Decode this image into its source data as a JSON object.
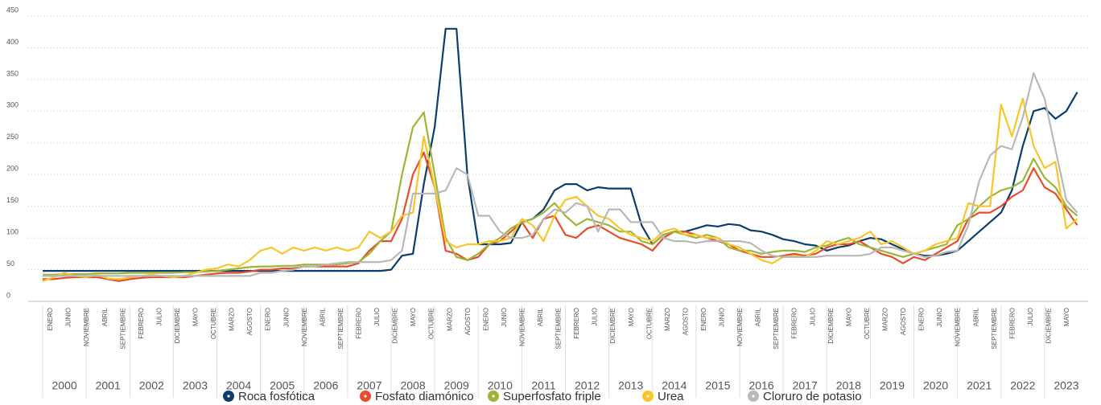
{
  "chart_data": {
    "type": "line",
    "series": [
      {
        "name": "Roca fosfótica",
        "color": "#0d3d6e",
        "values": [
          48,
          48,
          48,
          48,
          48,
          48,
          48,
          48,
          48,
          48,
          48,
          48,
          48,
          48,
          48,
          48,
          48,
          48,
          48,
          48,
          48,
          48,
          48,
          48,
          48,
          48,
          48,
          48,
          48,
          48,
          48,
          48,
          50,
          72,
          75,
          185,
          275,
          430,
          430,
          200,
          90,
          90,
          90,
          92,
          125,
          130,
          145,
          175,
          185,
          185,
          175,
          180,
          178,
          178,
          178,
          120,
          90,
          105,
          110,
          110,
          115,
          120,
          118,
          122,
          120,
          112,
          110,
          105,
          98,
          95,
          90,
          88,
          80,
          85,
          88,
          95,
          100,
          98,
          90,
          82,
          75,
          72,
          72,
          75,
          80,
          95,
          110,
          125,
          140,
          175,
          245,
          300,
          305,
          288,
          300,
          330
        ]
      },
      {
        "name": "Fosfato diamónico",
        "color": "#e84c2b",
        "values": [
          35,
          35,
          37,
          38,
          38,
          38,
          35,
          32,
          35,
          37,
          38,
          38,
          38,
          38,
          40,
          42,
          44,
          45,
          45,
          47,
          50,
          50,
          52,
          52,
          55,
          55,
          55,
          55,
          55,
          60,
          80,
          95,
          95,
          130,
          200,
          235,
          180,
          80,
          75,
          65,
          70,
          90,
          95,
          110,
          125,
          100,
          130,
          135,
          105,
          100,
          115,
          120,
          110,
          100,
          95,
          90,
          80,
          100,
          110,
          110,
          105,
          100,
          95,
          90,
          80,
          75,
          70,
          70,
          72,
          75,
          72,
          75,
          85,
          90,
          90,
          95,
          85,
          75,
          70,
          60,
          70,
          65,
          75,
          85,
          95,
          130,
          140,
          140,
          150,
          165,
          175,
          210,
          180,
          170,
          145,
          120
        ]
      },
      {
        "name": "Superfosfato friple",
        "color": "#9bb636",
        "values": [
          42,
          42,
          43,
          43,
          43,
          44,
          44,
          44,
          45,
          45,
          45,
          45,
          45,
          46,
          46,
          47,
          48,
          50,
          52,
          54,
          55,
          55,
          56,
          56,
          58,
          58,
          58,
          58,
          60,
          62,
          75,
          95,
          110,
          200,
          275,
          298,
          200,
          100,
          70,
          65,
          75,
          90,
          100,
          115,
          125,
          130,
          140,
          155,
          135,
          120,
          130,
          125,
          120,
          110,
          110,
          95,
          90,
          105,
          110,
          105,
          100,
          105,
          100,
          85,
          80,
          80,
          75,
          78,
          80,
          80,
          78,
          85,
          88,
          95,
          100,
          90,
          85,
          80,
          75,
          70,
          75,
          80,
          85,
          90,
          120,
          130,
          150,
          165,
          175,
          180,
          190,
          225,
          195,
          180,
          150,
          135
        ]
      },
      {
        "name": "Urea",
        "color": "#f9c52b",
        "values": [
          32,
          38,
          45,
          40,
          38,
          42,
          36,
          35,
          38,
          40,
          42,
          40,
          38,
          40,
          45,
          50,
          52,
          58,
          55,
          65,
          80,
          85,
          75,
          85,
          80,
          85,
          80,
          85,
          80,
          85,
          110,
          100,
          110,
          135,
          140,
          260,
          180,
          95,
          85,
          90,
          90,
          95,
          95,
          100,
          130,
          120,
          95,
          135,
          160,
          165,
          150,
          135,
          130,
          115,
          105,
          100,
          95,
          110,
          115,
          105,
          105,
          100,
          100,
          90,
          85,
          75,
          65,
          60,
          70,
          72,
          70,
          80,
          95,
          90,
          95,
          100,
          110,
          90,
          95,
          85,
          75,
          80,
          90,
          95,
          100,
          155,
          150,
          150,
          310,
          260,
          320,
          245,
          210,
          220,
          115,
          130
        ]
      },
      {
        "name": "Cloruro de potasio",
        "color": "#b8b8b8",
        "values": [
          40,
          40,
          40,
          40,
          40,
          40,
          40,
          40,
          40,
          40,
          40,
          40,
          40,
          40,
          40,
          40,
          40,
          40,
          40,
          40,
          45,
          45,
          48,
          50,
          55,
          55,
          58,
          60,
          62,
          62,
          62,
          62,
          65,
          80,
          170,
          170,
          170,
          175,
          210,
          200,
          135,
          135,
          110,
          100,
          100,
          105,
          130,
          145,
          140,
          155,
          150,
          110,
          145,
          145,
          125,
          125,
          125,
          100,
          95,
          95,
          92,
          95,
          95,
          95,
          95,
          92,
          80,
          72,
          70,
          70,
          70,
          70,
          72,
          72,
          72,
          72,
          75,
          85,
          85,
          80,
          75,
          70,
          72,
          78,
          80,
          120,
          190,
          230,
          245,
          240,
          290,
          360,
          320,
          240,
          160,
          140
        ]
      }
    ],
    "x": [
      2000,
      2000.25,
      2000.5,
      2000.75,
      2001,
      2001.25,
      2001.5,
      2001.75,
      2002,
      2002.25,
      2002.5,
      2002.75,
      2003,
      2003.25,
      2003.5,
      2003.75,
      2004,
      2004.25,
      2004.5,
      2004.75,
      2005,
      2005.25,
      2005.5,
      2005.75,
      2006,
      2006.25,
      2006.5,
      2006.75,
      2007,
      2007.25,
      2007.5,
      2007.75,
      2008,
      2008.25,
      2008.5,
      2008.75,
      2009,
      2009.25,
      2009.5,
      2009.75,
      2010,
      2010.25,
      2010.5,
      2010.75,
      2011,
      2011.25,
      2011.5,
      2011.75,
      2012,
      2012.25,
      2012.5,
      2012.75,
      2013,
      2013.25,
      2013.5,
      2013.75,
      2014,
      2014.25,
      2014.5,
      2014.75,
      2015,
      2015.25,
      2015.5,
      2015.75,
      2016,
      2016.25,
      2016.5,
      2016.75,
      2017,
      2017.25,
      2017.5,
      2017.75,
      2018,
      2018.25,
      2018.5,
      2018.75,
      2019,
      2019.25,
      2019.5,
      2019.75,
      2020,
      2020.25,
      2020.5,
      2020.75,
      2021,
      2021.25,
      2021.5,
      2021.75,
      2022,
      2022.25,
      2022.5,
      2022.75,
      2023,
      2023.25,
      2023.5,
      2023.75
    ],
    "xlim": [
      2000,
      2024
    ],
    "xticks": [
      {
        "value": 2000.0,
        "label": "ENERO"
      },
      {
        "value": 2000.417,
        "label": "JUNIO"
      },
      {
        "value": 2000.833,
        "label": "NOVIEMBRE"
      },
      {
        "value": 2001.25,
        "label": "ABRIL"
      },
      {
        "value": 2001.667,
        "label": "SEPTIEMBRE"
      },
      {
        "value": 2002.083,
        "label": "FEBRERO"
      },
      {
        "value": 2002.5,
        "label": "JULIO"
      },
      {
        "value": 2002.917,
        "label": "DICIEMBRE"
      },
      {
        "value": 2003.333,
        "label": "MAYO"
      },
      {
        "value": 2003.75,
        "label": "OCTUBRE"
      },
      {
        "value": 2004.167,
        "label": "MARZO"
      },
      {
        "value": 2004.583,
        "label": "AGOSTO"
      },
      {
        "value": 2005.0,
        "label": "ENERO"
      },
      {
        "value": 2005.417,
        "label": "JUNIO"
      },
      {
        "value": 2005.833,
        "label": "NOVIEMBRE"
      },
      {
        "value": 2006.25,
        "label": "ABRIL"
      },
      {
        "value": 2006.667,
        "label": "SEPTIEMBRE"
      },
      {
        "value": 2007.083,
        "label": "FEBRERO"
      },
      {
        "value": 2007.5,
        "label": "JULIO"
      },
      {
        "value": 2007.917,
        "label": "DICIEMBRE"
      },
      {
        "value": 2008.333,
        "label": "MAYO"
      },
      {
        "value": 2008.75,
        "label": "OCTUBRE"
      },
      {
        "value": 2009.167,
        "label": "MARZO"
      },
      {
        "value": 2009.583,
        "label": "AGOSTO"
      },
      {
        "value": 2010.0,
        "label": "ENERO"
      },
      {
        "value": 2010.417,
        "label": "JUNIO"
      },
      {
        "value": 2010.833,
        "label": "NOVIEMBRE"
      },
      {
        "value": 2011.25,
        "label": "ABRIL"
      },
      {
        "value": 2011.667,
        "label": "SEPTIEMBRE"
      },
      {
        "value": 2012.083,
        "label": "FEBRERO"
      },
      {
        "value": 2012.5,
        "label": "JULIO"
      },
      {
        "value": 2012.917,
        "label": "DICIEMBRE"
      },
      {
        "value": 2013.333,
        "label": "MAYO"
      },
      {
        "value": 2013.75,
        "label": "OCTUBRE"
      },
      {
        "value": 2014.167,
        "label": "MARZO"
      },
      {
        "value": 2014.583,
        "label": "AGOSTO"
      },
      {
        "value": 2015.0,
        "label": "ENERO"
      },
      {
        "value": 2015.417,
        "label": "JUNIO"
      },
      {
        "value": 2015.833,
        "label": "NOVIEMBRE"
      },
      {
        "value": 2016.25,
        "label": "ABRIL"
      },
      {
        "value": 2016.667,
        "label": "SEPTIEMBRE"
      },
      {
        "value": 2017.083,
        "label": "FEBRERO"
      },
      {
        "value": 2017.5,
        "label": "JULIO"
      },
      {
        "value": 2017.917,
        "label": "DICIEMBRE"
      },
      {
        "value": 2018.333,
        "label": "MAYO"
      },
      {
        "value": 2018.75,
        "label": "OCTUBRE"
      },
      {
        "value": 2019.167,
        "label": "MARZO"
      },
      {
        "value": 2019.583,
        "label": "AGOSTO"
      },
      {
        "value": 2020.0,
        "label": "ENERO"
      },
      {
        "value": 2020.417,
        "label": "JUNIO"
      },
      {
        "value": 2020.833,
        "label": "NOVIEMBRE"
      },
      {
        "value": 2021.25,
        "label": "ABRIL"
      },
      {
        "value": 2021.667,
        "label": "SEPTIEMBRE"
      },
      {
        "value": 2022.083,
        "label": "FEBRERO"
      },
      {
        "value": 2022.5,
        "label": "JULIO"
      },
      {
        "value": 2022.917,
        "label": "DICIEMBRE"
      },
      {
        "value": 2023.333,
        "label": "MAYO"
      }
    ],
    "years": [
      2000,
      2001,
      2002,
      2003,
      2004,
      2005,
      2006,
      2007,
      2008,
      2009,
      2010,
      2011,
      2012,
      2013,
      2014,
      2015,
      2016,
      2017,
      2018,
      2019,
      2020,
      2021,
      2022,
      2023
    ],
    "ylim": [
      0,
      450
    ],
    "yticks": [
      0,
      50,
      100,
      150,
      200,
      250,
      300,
      350,
      400,
      450
    ],
    "grid": true,
    "legend": "bottom"
  }
}
